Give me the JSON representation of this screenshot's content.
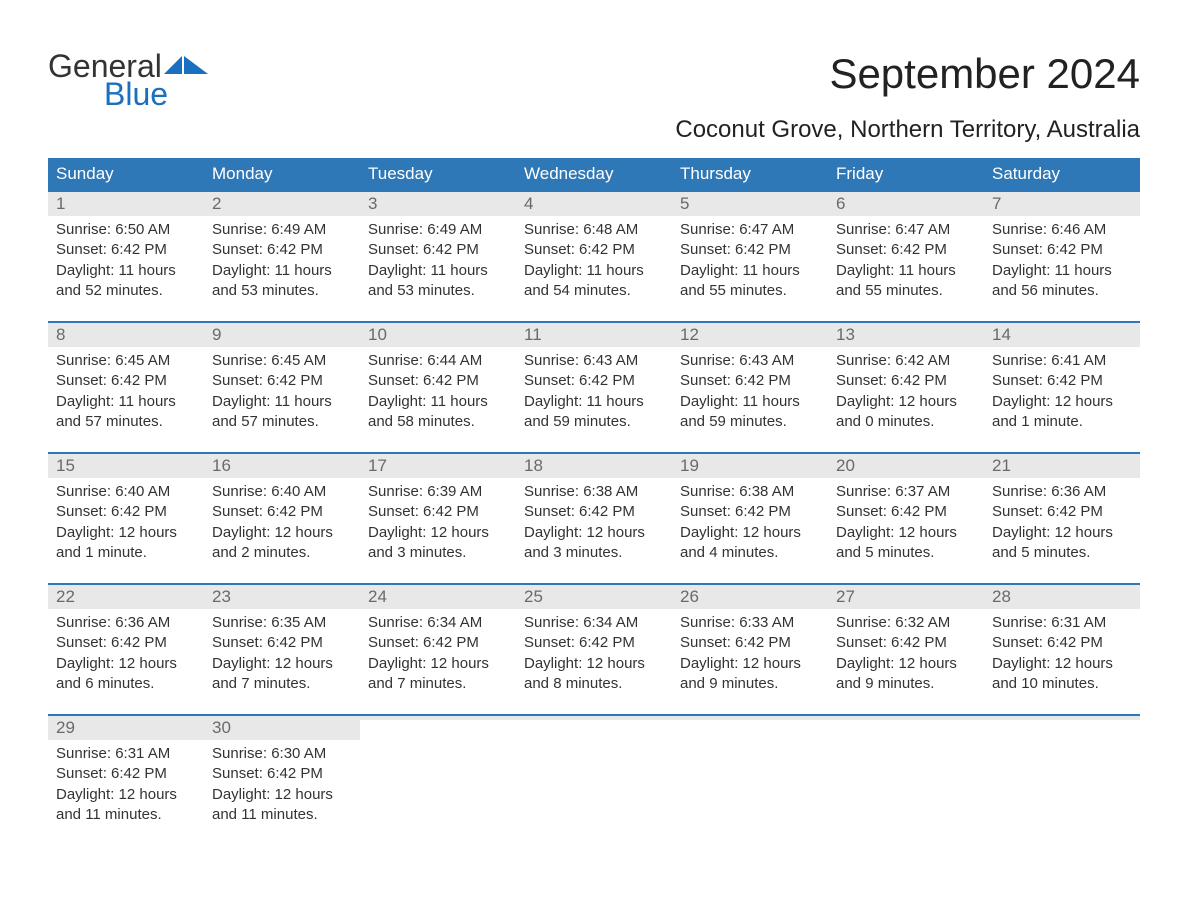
{
  "brand": {
    "word": "General",
    "sub": "Blue",
    "flag_color": "#1a6fbf"
  },
  "title": "September 2024",
  "subtitle": "Coconut Grove, Northern Territory, Australia",
  "colors": {
    "header_bg": "#2f78b7",
    "header_text": "#ffffff",
    "week_border": "#2f78b7",
    "daynum_bg": "#e8e8e8",
    "daynum_text": "#6a6a6a",
    "body_text": "#333333",
    "background": "#ffffff"
  },
  "font_sizes": {
    "title": 42,
    "subtitle": 24,
    "header": 17,
    "daynum": 17,
    "body": 15
  },
  "day_headers": [
    "Sunday",
    "Monday",
    "Tuesday",
    "Wednesday",
    "Thursday",
    "Friday",
    "Saturday"
  ],
  "weeks": [
    [
      {
        "n": "1",
        "sr": "Sunrise: 6:50 AM",
        "ss": "Sunset: 6:42 PM",
        "d1": "Daylight: 11 hours",
        "d2": "and 52 minutes."
      },
      {
        "n": "2",
        "sr": "Sunrise: 6:49 AM",
        "ss": "Sunset: 6:42 PM",
        "d1": "Daylight: 11 hours",
        "d2": "and 53 minutes."
      },
      {
        "n": "3",
        "sr": "Sunrise: 6:49 AM",
        "ss": "Sunset: 6:42 PM",
        "d1": "Daylight: 11 hours",
        "d2": "and 53 minutes."
      },
      {
        "n": "4",
        "sr": "Sunrise: 6:48 AM",
        "ss": "Sunset: 6:42 PM",
        "d1": "Daylight: 11 hours",
        "d2": "and 54 minutes."
      },
      {
        "n": "5",
        "sr": "Sunrise: 6:47 AM",
        "ss": "Sunset: 6:42 PM",
        "d1": "Daylight: 11 hours",
        "d2": "and 55 minutes."
      },
      {
        "n": "6",
        "sr": "Sunrise: 6:47 AM",
        "ss": "Sunset: 6:42 PM",
        "d1": "Daylight: 11 hours",
        "d2": "and 55 minutes."
      },
      {
        "n": "7",
        "sr": "Sunrise: 6:46 AM",
        "ss": "Sunset: 6:42 PM",
        "d1": "Daylight: 11 hours",
        "d2": "and 56 minutes."
      }
    ],
    [
      {
        "n": "8",
        "sr": "Sunrise: 6:45 AM",
        "ss": "Sunset: 6:42 PM",
        "d1": "Daylight: 11 hours",
        "d2": "and 57 minutes."
      },
      {
        "n": "9",
        "sr": "Sunrise: 6:45 AM",
        "ss": "Sunset: 6:42 PM",
        "d1": "Daylight: 11 hours",
        "d2": "and 57 minutes."
      },
      {
        "n": "10",
        "sr": "Sunrise: 6:44 AM",
        "ss": "Sunset: 6:42 PM",
        "d1": "Daylight: 11 hours",
        "d2": "and 58 minutes."
      },
      {
        "n": "11",
        "sr": "Sunrise: 6:43 AM",
        "ss": "Sunset: 6:42 PM",
        "d1": "Daylight: 11 hours",
        "d2": "and 59 minutes."
      },
      {
        "n": "12",
        "sr": "Sunrise: 6:43 AM",
        "ss": "Sunset: 6:42 PM",
        "d1": "Daylight: 11 hours",
        "d2": "and 59 minutes."
      },
      {
        "n": "13",
        "sr": "Sunrise: 6:42 AM",
        "ss": "Sunset: 6:42 PM",
        "d1": "Daylight: 12 hours",
        "d2": "and 0 minutes."
      },
      {
        "n": "14",
        "sr": "Sunrise: 6:41 AM",
        "ss": "Sunset: 6:42 PM",
        "d1": "Daylight: 12 hours",
        "d2": "and 1 minute."
      }
    ],
    [
      {
        "n": "15",
        "sr": "Sunrise: 6:40 AM",
        "ss": "Sunset: 6:42 PM",
        "d1": "Daylight: 12 hours",
        "d2": "and 1 minute."
      },
      {
        "n": "16",
        "sr": "Sunrise: 6:40 AM",
        "ss": "Sunset: 6:42 PM",
        "d1": "Daylight: 12 hours",
        "d2": "and 2 minutes."
      },
      {
        "n": "17",
        "sr": "Sunrise: 6:39 AM",
        "ss": "Sunset: 6:42 PM",
        "d1": "Daylight: 12 hours",
        "d2": "and 3 minutes."
      },
      {
        "n": "18",
        "sr": "Sunrise: 6:38 AM",
        "ss": "Sunset: 6:42 PM",
        "d1": "Daylight: 12 hours",
        "d2": "and 3 minutes."
      },
      {
        "n": "19",
        "sr": "Sunrise: 6:38 AM",
        "ss": "Sunset: 6:42 PM",
        "d1": "Daylight: 12 hours",
        "d2": "and 4 minutes."
      },
      {
        "n": "20",
        "sr": "Sunrise: 6:37 AM",
        "ss": "Sunset: 6:42 PM",
        "d1": "Daylight: 12 hours",
        "d2": "and 5 minutes."
      },
      {
        "n": "21",
        "sr": "Sunrise: 6:36 AM",
        "ss": "Sunset: 6:42 PM",
        "d1": "Daylight: 12 hours",
        "d2": "and 5 minutes."
      }
    ],
    [
      {
        "n": "22",
        "sr": "Sunrise: 6:36 AM",
        "ss": "Sunset: 6:42 PM",
        "d1": "Daylight: 12 hours",
        "d2": "and 6 minutes."
      },
      {
        "n": "23",
        "sr": "Sunrise: 6:35 AM",
        "ss": "Sunset: 6:42 PM",
        "d1": "Daylight: 12 hours",
        "d2": "and 7 minutes."
      },
      {
        "n": "24",
        "sr": "Sunrise: 6:34 AM",
        "ss": "Sunset: 6:42 PM",
        "d1": "Daylight: 12 hours",
        "d2": "and 7 minutes."
      },
      {
        "n": "25",
        "sr": "Sunrise: 6:34 AM",
        "ss": "Sunset: 6:42 PM",
        "d1": "Daylight: 12 hours",
        "d2": "and 8 minutes."
      },
      {
        "n": "26",
        "sr": "Sunrise: 6:33 AM",
        "ss": "Sunset: 6:42 PM",
        "d1": "Daylight: 12 hours",
        "d2": "and 9 minutes."
      },
      {
        "n": "27",
        "sr": "Sunrise: 6:32 AM",
        "ss": "Sunset: 6:42 PM",
        "d1": "Daylight: 12 hours",
        "d2": "and 9 minutes."
      },
      {
        "n": "28",
        "sr": "Sunrise: 6:31 AM",
        "ss": "Sunset: 6:42 PM",
        "d1": "Daylight: 12 hours",
        "d2": "and 10 minutes."
      }
    ],
    [
      {
        "n": "29",
        "sr": "Sunrise: 6:31 AM",
        "ss": "Sunset: 6:42 PM",
        "d1": "Daylight: 12 hours",
        "d2": "and 11 minutes."
      },
      {
        "n": "30",
        "sr": "Sunrise: 6:30 AM",
        "ss": "Sunset: 6:42 PM",
        "d1": "Daylight: 12 hours",
        "d2": "and 11 minutes."
      },
      {
        "n": "",
        "sr": "",
        "ss": "",
        "d1": "",
        "d2": "",
        "empty": true
      },
      {
        "n": "",
        "sr": "",
        "ss": "",
        "d1": "",
        "d2": "",
        "empty": true
      },
      {
        "n": "",
        "sr": "",
        "ss": "",
        "d1": "",
        "d2": "",
        "empty": true
      },
      {
        "n": "",
        "sr": "",
        "ss": "",
        "d1": "",
        "d2": "",
        "empty": true
      },
      {
        "n": "",
        "sr": "",
        "ss": "",
        "d1": "",
        "d2": "",
        "empty": true
      }
    ]
  ]
}
